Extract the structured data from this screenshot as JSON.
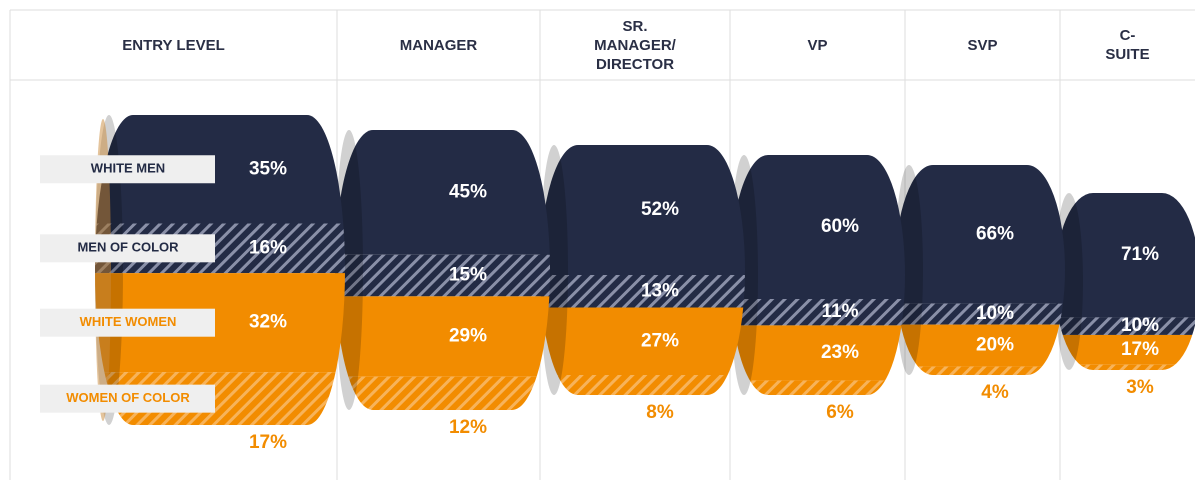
{
  "chart_data": {
    "type": "funnel-stacked",
    "categories": [
      "ENTRY LEVEL",
      "MANAGER",
      "SR. MANAGER/ DIRECTOR",
      "VP",
      "SVP",
      "C-SUITE"
    ],
    "series": [
      {
        "name": "WHITE MEN",
        "color": "#232b45",
        "values": [
          35,
          45,
          52,
          60,
          66,
          71
        ],
        "value_labels": [
          "35%",
          "45%",
          "52%",
          "60%",
          "66%",
          "71%"
        ]
      },
      {
        "name": "MEN OF COLOR",
        "color": "#232b45",
        "pattern": "hatch",
        "values": [
          16,
          15,
          13,
          11,
          10,
          10
        ],
        "value_labels": [
          "16%",
          "15%",
          "13%",
          "11%",
          "10%",
          "10%"
        ]
      },
      {
        "name": "WHITE WOMEN",
        "color": "#f28c00",
        "values": [
          32,
          29,
          27,
          23,
          20,
          17
        ],
        "value_labels": [
          "32%",
          "29%",
          "27%",
          "23%",
          "20%",
          "17%"
        ]
      },
      {
        "name": "WOMEN OF COLOR",
        "color": "#f28c00",
        "pattern": "hatch",
        "values": [
          17,
          12,
          8,
          6,
          4,
          3
        ],
        "value_labels": [
          "17%",
          "12%",
          "8%",
          "6%",
          "4%",
          "3%"
        ]
      }
    ]
  }
}
